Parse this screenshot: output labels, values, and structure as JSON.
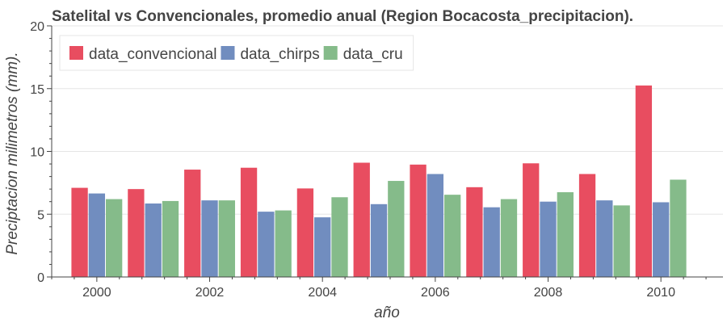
{
  "chart_data": {
    "type": "bar",
    "title": "Satelital vs Convencionales, promedio anual (Region Bocacosta_precipitacion).",
    "xlabel": "año",
    "ylabel": "Preciptacion milimetros (mm).",
    "categories": [
      2000,
      2001,
      2002,
      2003,
      2004,
      2005,
      2006,
      2007,
      2008,
      2009,
      2010
    ],
    "x_ticks": [
      "2000",
      "2002",
      "2004",
      "2006",
      "2008",
      "2010"
    ],
    "y_ticks": [
      "0",
      "5",
      "10",
      "15",
      "20"
    ],
    "ylim": [
      0,
      20
    ],
    "xlim": [
      1999.2,
      2011.1
    ],
    "grid": true,
    "legend_position": "top-left",
    "series": [
      {
        "name": "data_convencional",
        "color": "#e84d60",
        "values": [
          7.1,
          7.0,
          8.55,
          8.7,
          7.05,
          9.1,
          8.95,
          7.15,
          9.05,
          8.2,
          15.25
        ]
      },
      {
        "name": "data_chirps",
        "color": "#718dbf",
        "values": [
          6.65,
          5.85,
          6.1,
          5.2,
          4.75,
          5.8,
          8.2,
          5.55,
          6.0,
          6.1,
          5.95
        ]
      },
      {
        "name": "data_cru",
        "color": "#85bb8a",
        "values": [
          6.2,
          6.05,
          6.1,
          5.3,
          6.35,
          7.65,
          6.55,
          6.2,
          6.75,
          5.7,
          7.75
        ]
      }
    ]
  }
}
